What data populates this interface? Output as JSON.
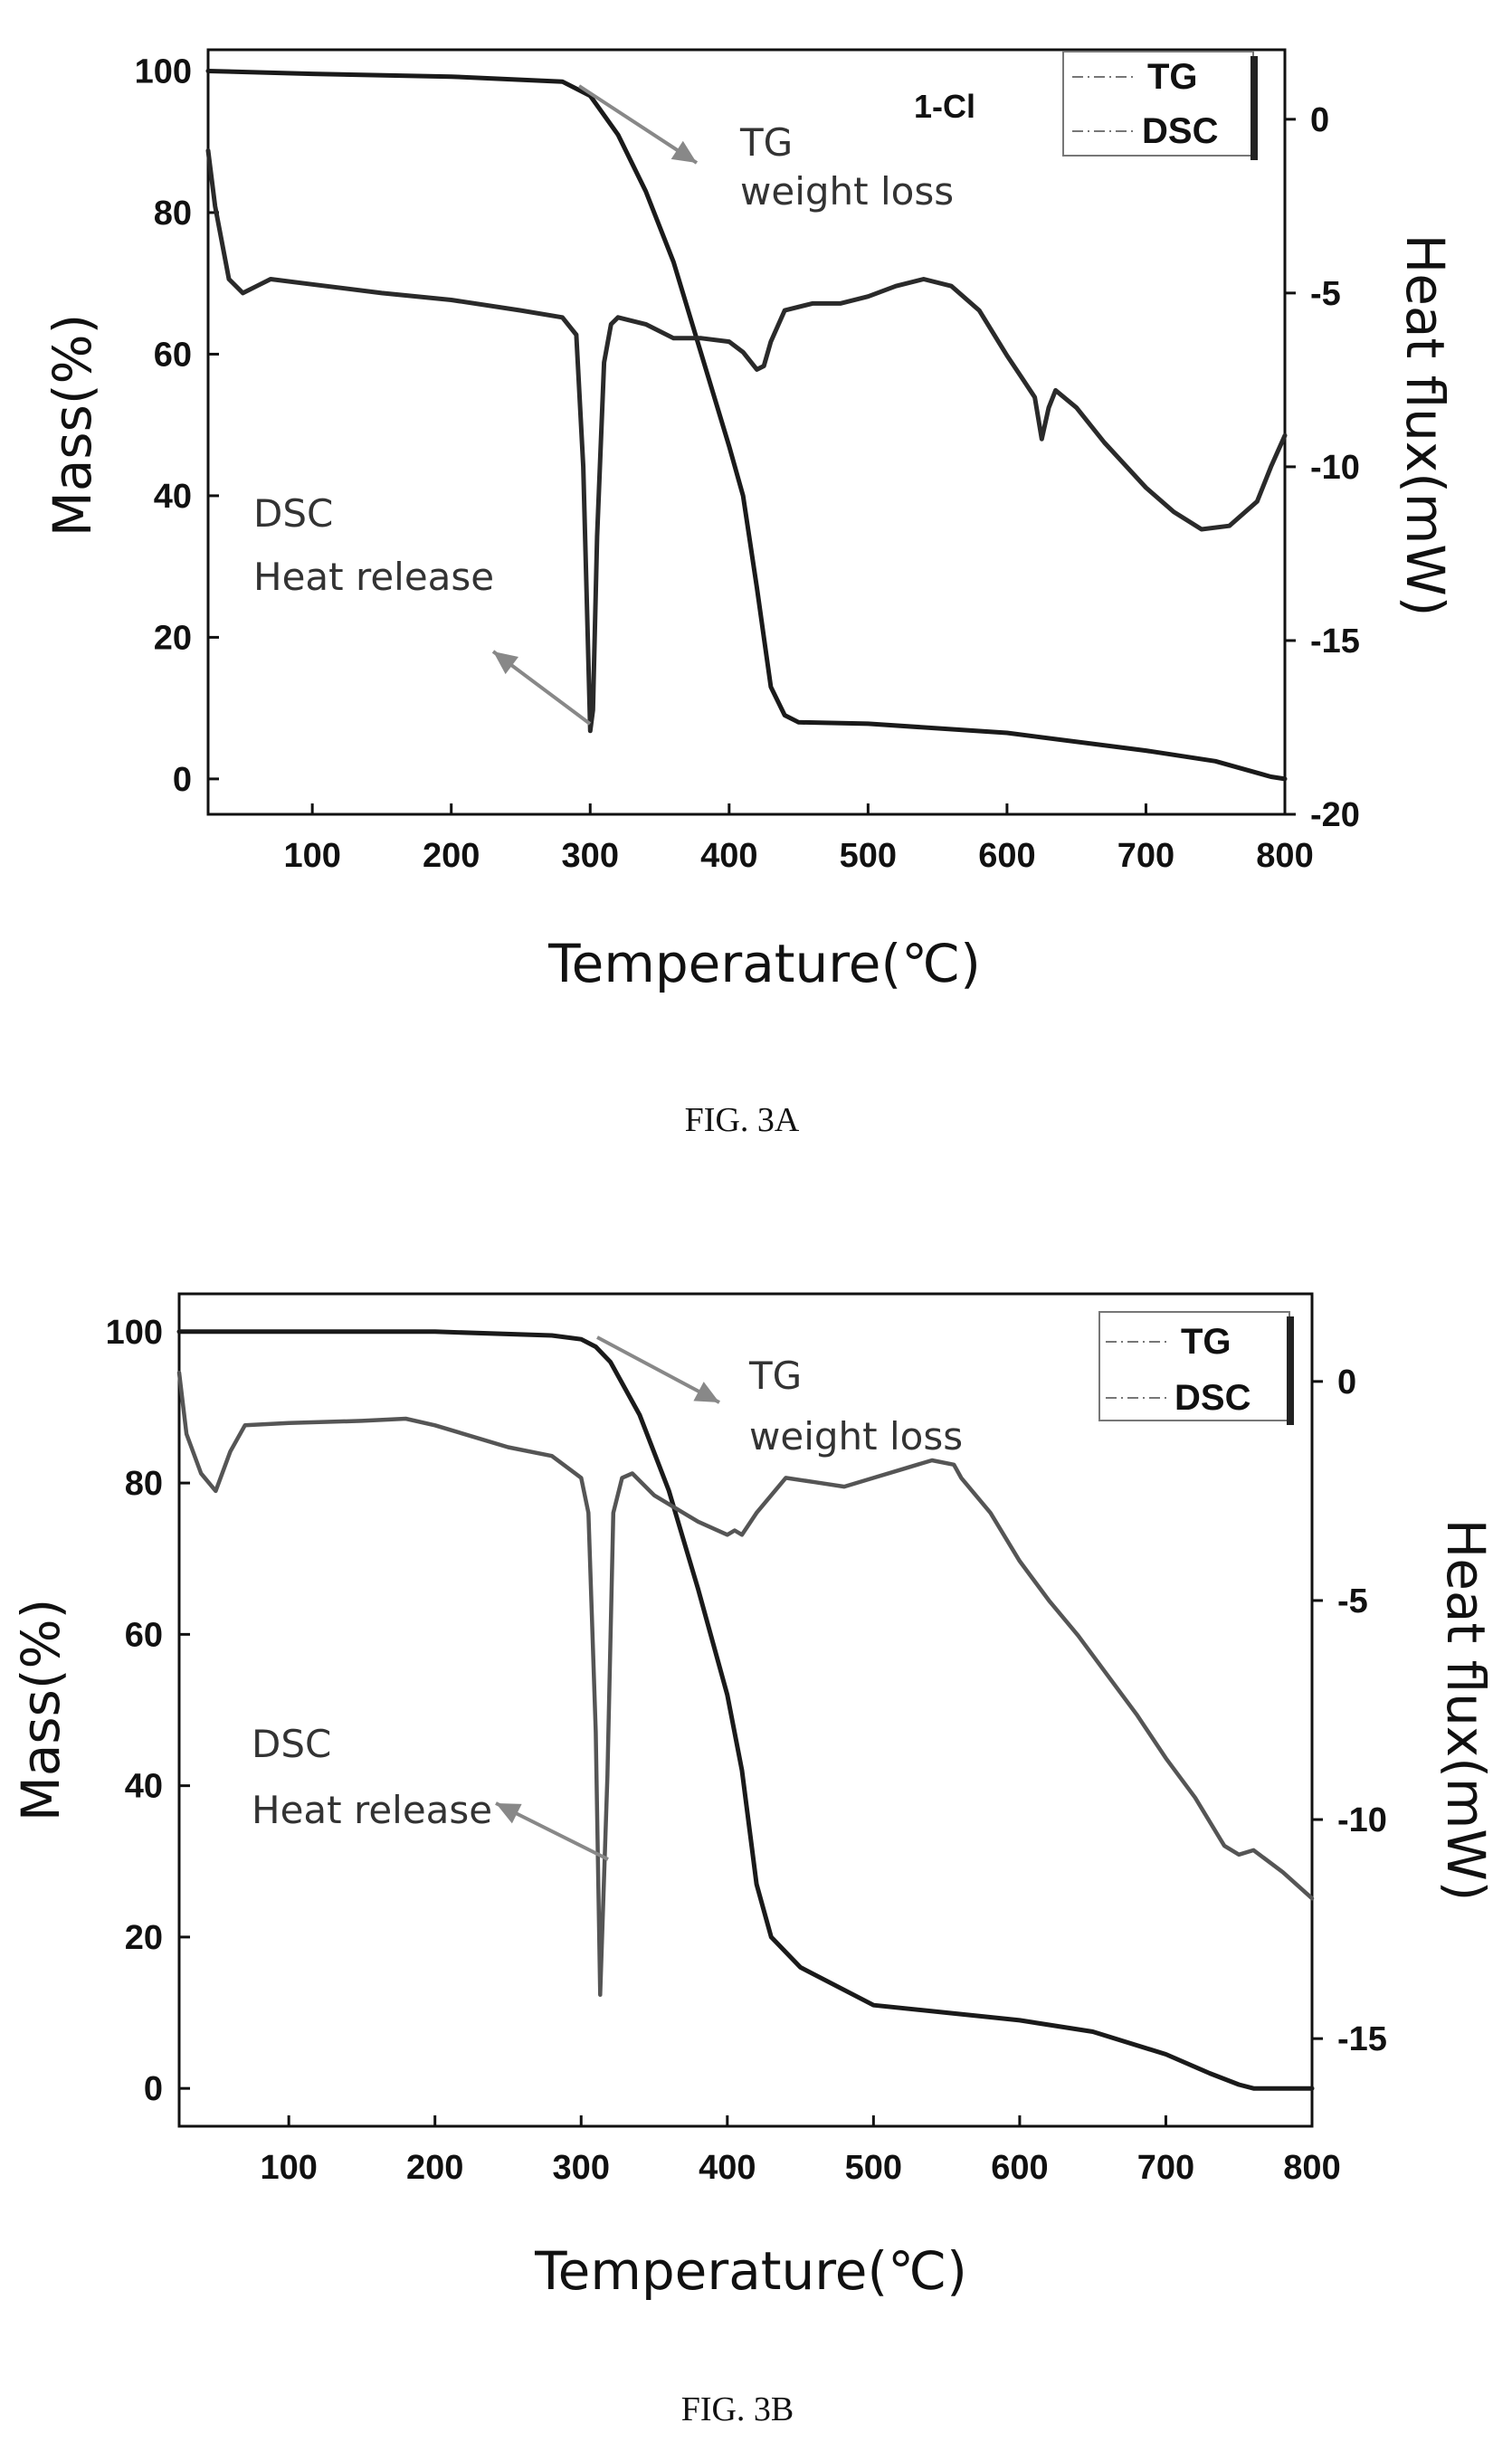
{
  "chart_data": [
    {
      "type": "line",
      "caption": "FIG. 3A",
      "chart_label": "1-Cl",
      "xlabel": "Temperature(℃)",
      "ylabel": "Mass(%)",
      "y2label": "Heat flux(mW)",
      "xlim": [
        25,
        800
      ],
      "ylim": [
        -5,
        103
      ],
      "y2lim": [
        -20,
        2
      ],
      "x_ticks": [
        100,
        200,
        300,
        400,
        500,
        600,
        700,
        800
      ],
      "y_ticks": [
        0,
        20,
        40,
        60,
        80,
        100
      ],
      "y2_ticks": [
        -20,
        -15,
        -10,
        -5,
        0
      ],
      "legend": [
        "TG",
        "DSC"
      ],
      "legend_position": "top-right",
      "annotations": [
        {
          "lines": [
            "TG",
            "weight loss"
          ]
        },
        {
          "lines": [
            "DSC",
            "Heat release"
          ]
        }
      ],
      "series": [
        {
          "name": "TG",
          "axis": "left",
          "x": [
            25,
            100,
            200,
            280,
            300,
            320,
            340,
            360,
            380,
            400,
            410,
            420,
            430,
            440,
            450,
            500,
            600,
            700,
            750,
            790,
            800
          ],
          "y": [
            100,
            99.6,
            99.2,
            98.5,
            96.5,
            91,
            83,
            73,
            60,
            47,
            40,
            27,
            13,
            9,
            8,
            7.8,
            6.5,
            4,
            2.5,
            0.3,
            0
          ]
        },
        {
          "name": "DSC",
          "axis": "right",
          "x": [
            25,
            30,
            40,
            50,
            60,
            70,
            100,
            150,
            200,
            250,
            280,
            290,
            295,
            300,
            302,
            305,
            310,
            315,
            320,
            340,
            360,
            380,
            400,
            410,
            420,
            425,
            430,
            440,
            460,
            480,
            500,
            520,
            540,
            560,
            580,
            600,
            610,
            620,
            625,
            630,
            635,
            650,
            670,
            700,
            720,
            740,
            760,
            780,
            790,
            800
          ],
          "y": [
            -0.9,
            -2.5,
            -4.6,
            -5.0,
            -4.8,
            -4.6,
            -4.75,
            -5.0,
            -5.2,
            -5.5,
            -5.7,
            -6.2,
            -10,
            -17.6,
            -17,
            -12,
            -7,
            -5.9,
            -5.7,
            -5.9,
            -6.3,
            -6.3,
            -6.4,
            -6.7,
            -7.2,
            -7.1,
            -6.4,
            -5.5,
            -5.3,
            -5.3,
            -5.1,
            -4.8,
            -4.6,
            -4.8,
            -5.5,
            -6.8,
            -7.4,
            -8.0,
            -9.2,
            -8.3,
            -7.8,
            -8.3,
            -9.3,
            -10.6,
            -11.3,
            -11.8,
            -11.7,
            -11.0,
            -10.0,
            -9.1
          ]
        }
      ]
    },
    {
      "type": "line",
      "caption": "FIG. 3B",
      "xlabel": "Temperature(℃)",
      "ylabel": "Mass(%)",
      "y2label": "Heat flux(mW)",
      "xlim": [
        25,
        800
      ],
      "ylim": [
        -5,
        105
      ],
      "y2lim": [
        -17,
        2
      ],
      "x_ticks": [
        100,
        200,
        300,
        400,
        500,
        600,
        700,
        800
      ],
      "y_ticks": [
        0,
        20,
        40,
        60,
        80,
        100
      ],
      "y2_ticks": [
        -15,
        -10,
        -5,
        0
      ],
      "legend": [
        "TG",
        "DSC"
      ],
      "legend_position": "top-right",
      "annotations": [
        {
          "lines": [
            "TG",
            "weight loss"
          ]
        },
        {
          "lines": [
            "DSC",
            "Heat release"
          ]
        }
      ],
      "series": [
        {
          "name": "TG",
          "axis": "left",
          "x": [
            25,
            100,
            200,
            280,
            300,
            310,
            320,
            340,
            360,
            380,
            400,
            410,
            420,
            430,
            450,
            500,
            550,
            600,
            650,
            700,
            730,
            750,
            760,
            800
          ],
          "y": [
            100,
            100,
            100,
            99.5,
            99,
            98,
            96,
            89,
            79,
            66,
            52,
            42,
            27,
            20,
            16,
            11,
            10,
            9,
            7.5,
            4.5,
            2,
            0.5,
            0,
            0
          ]
        },
        {
          "name": "DSC",
          "axis": "right",
          "x": [
            25,
            30,
            40,
            50,
            60,
            70,
            100,
            150,
            180,
            200,
            250,
            280,
            300,
            305,
            310,
            313,
            318,
            322,
            328,
            335,
            350,
            380,
            400,
            405,
            410,
            420,
            440,
            460,
            480,
            500,
            520,
            540,
            555,
            560,
            580,
            600,
            620,
            640,
            660,
            680,
            700,
            720,
            740,
            750,
            760,
            780,
            800
          ],
          "y": [
            0.2,
            -1.2,
            -2.1,
            -2.5,
            -1.6,
            -1.0,
            -0.95,
            -0.9,
            -0.85,
            -1.0,
            -1.5,
            -1.7,
            -2.2,
            -3.0,
            -8.0,
            -14.0,
            -9.0,
            -3.0,
            -2.2,
            -2.1,
            -2.6,
            -3.2,
            -3.5,
            -3.4,
            -3.5,
            -3.0,
            -2.2,
            -2.3,
            -2.4,
            -2.2,
            -2.0,
            -1.8,
            -1.9,
            -2.2,
            -3.0,
            -4.1,
            -5.0,
            -5.8,
            -6.7,
            -7.6,
            -8.6,
            -9.5,
            -10.6,
            -10.8,
            -10.7,
            -11.2,
            -11.8
          ]
        }
      ]
    }
  ]
}
